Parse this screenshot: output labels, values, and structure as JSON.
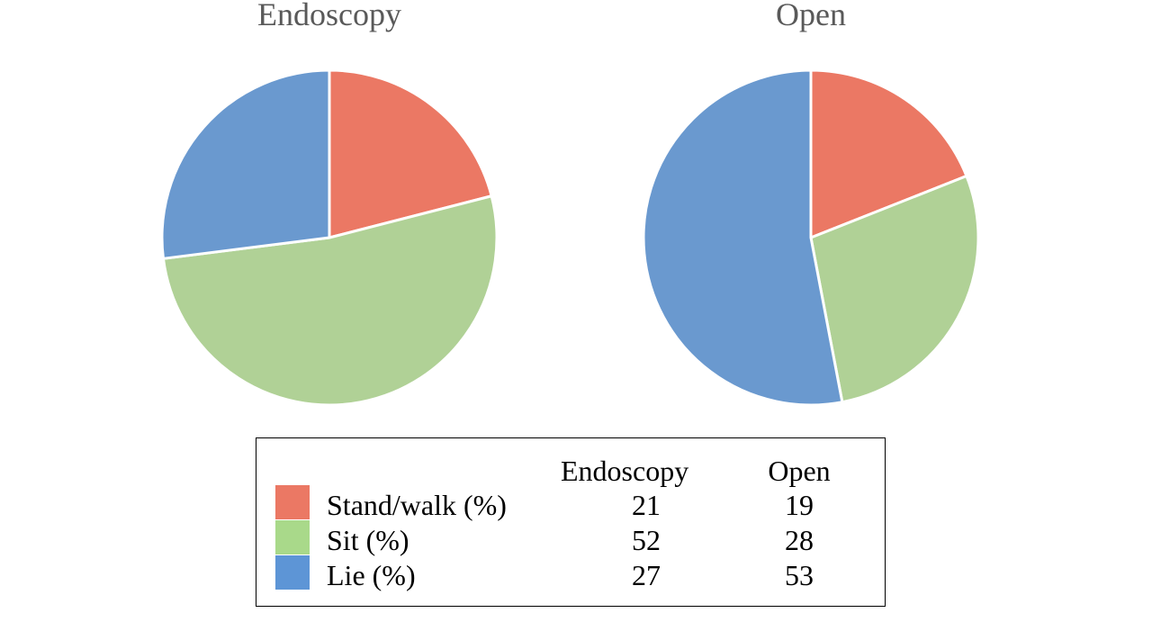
{
  "chart_data": {
    "type": "pie",
    "categories": [
      "Stand/walk (%)",
      "Sit (%)",
      "Lie (%)"
    ],
    "series": [
      {
        "name": "Endoscopy",
        "values": [
          21,
          52,
          27
        ]
      },
      {
        "name": "Open",
        "values": [
          19,
          28,
          53
        ]
      }
    ],
    "colors": [
      "#EB7864",
      "#B0D196",
      "#6A99CF"
    ],
    "legend_colors": [
      "#EB7864",
      "#A9D98A",
      "#5D95D6"
    ],
    "legend_placement": "bottom-table",
    "table_headers": [
      "Endoscopy",
      "Open"
    ]
  }
}
